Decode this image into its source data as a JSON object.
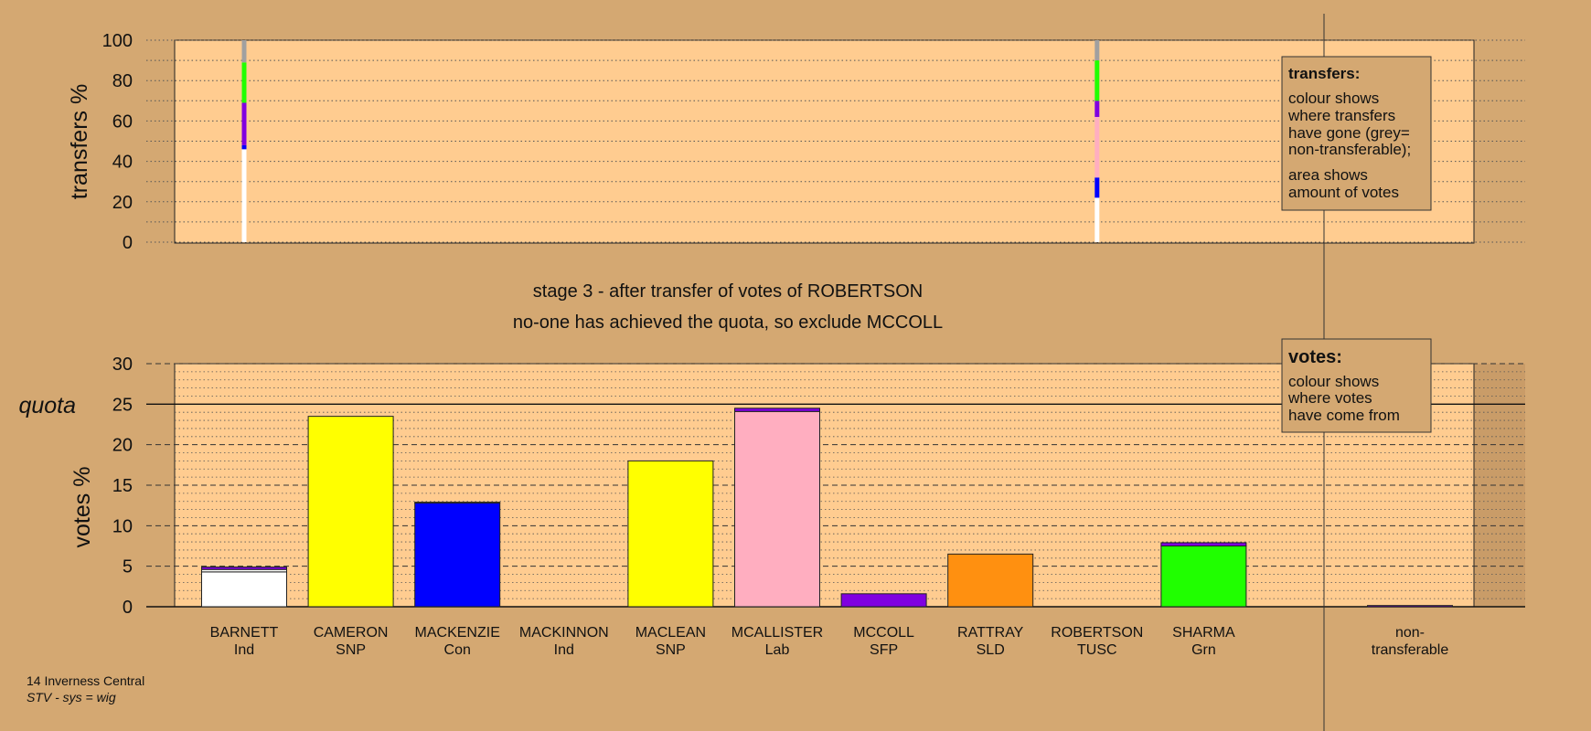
{
  "stage_line1": "stage 3 - after transfer of votes of ROBERTSON",
  "stage_line2": "no-one has achieved the quota, so exclude MCCOLL",
  "footer": {
    "line1": "14 Inverness Central",
    "line2": "STV - sys = wig"
  },
  "legend_transfers": {
    "title": "transfers:",
    "lines": [
      "colour shows",
      "where transfers",
      "have gone (grey=",
      "non-transferable);",
      "area shows",
      "amount of votes"
    ]
  },
  "legend_votes": {
    "title": "votes:",
    "lines": [
      "colour shows",
      "where votes",
      "have come from"
    ]
  },
  "colors": {
    "background": "#d4a872",
    "plot": "#ffcc90",
    "Ind": "#ffffff",
    "SNP": "#ffff00",
    "Con": "#0000ff",
    "Lab": "#ffaec0",
    "SFP": "#8000e0",
    "SLD": "#ff9010",
    "TUSC": "#d4a872",
    "Grn": "#20ff00",
    "nontransferable": "#a0a0a0"
  },
  "chart_data": [
    {
      "type": "bar",
      "subtype": "stacked",
      "ylabel": "transfers %",
      "ylim": [
        0,
        100
      ],
      "yticks": [
        0,
        20,
        40,
        60,
        80,
        100
      ],
      "grid": "dotted",
      "columns": [
        {
          "candidate": "BARNETT",
          "segments": [
            {
              "source": "Ind",
              "from": 0,
              "to": 46
            },
            {
              "source": "Con",
              "from": 46,
              "to": 48
            },
            {
              "source": "SFP",
              "from": 48,
              "to": 69
            },
            {
              "source": "Grn",
              "from": 69,
              "to": 89
            },
            {
              "source": "nontransferable",
              "from": 89,
              "to": 100
            }
          ]
        },
        {
          "candidate": "ROBERTSON",
          "segments": [
            {
              "source": "Ind",
              "from": 0,
              "to": 22
            },
            {
              "source": "Con",
              "from": 22,
              "to": 32
            },
            {
              "source": "Lab",
              "from": 32,
              "to": 62
            },
            {
              "source": "SFP",
              "from": 62,
              "to": 70
            },
            {
              "source": "Grn",
              "from": 70,
              "to": 90
            },
            {
              "source": "nontransferable",
              "from": 90,
              "to": 100
            }
          ]
        }
      ]
    },
    {
      "type": "bar",
      "subtype": "stacked",
      "ylabel": "votes %",
      "ylim": [
        0,
        30
      ],
      "yticks": [
        0,
        5,
        10,
        15,
        20,
        25,
        30
      ],
      "quota": 25,
      "quota_label": "quota",
      "grid": "dashed",
      "categories": [
        {
          "name": "BARNETT",
          "party": "Ind"
        },
        {
          "name": "CAMERON",
          "party": "SNP"
        },
        {
          "name": "MACKENZIE",
          "party": "Con"
        },
        {
          "name": "MACKINNON",
          "party": "Ind"
        },
        {
          "name": "MACLEAN",
          "party": "SNP"
        },
        {
          "name": "MCALLISTER",
          "party": "Lab"
        },
        {
          "name": "MCCOLL",
          "party": "SFP"
        },
        {
          "name": "RATTRAY",
          "party": "SLD"
        },
        {
          "name": "ROBERTSON",
          "party": "TUSC"
        },
        {
          "name": "SHARMA",
          "party": "Grn"
        },
        {
          "name": "non-",
          "party": "transferable"
        }
      ],
      "bars": [
        {
          "segments": [
            {
              "source": "Ind",
              "value": 4.3
            },
            {
              "source": "Ind",
              "value": 0.3
            },
            {
              "source": "SFP",
              "value": 0.3
            }
          ]
        },
        {
          "segments": [
            {
              "source": "SNP",
              "value": 23.5
            }
          ]
        },
        {
          "segments": [
            {
              "source": "Con",
              "value": 12.8
            },
            {
              "source": "Con",
              "value": 0.1
            }
          ]
        },
        {
          "segments": [
            {
              "source": "Ind",
              "value": 0
            }
          ]
        },
        {
          "segments": [
            {
              "source": "SNP",
              "value": 18.0
            }
          ]
        },
        {
          "segments": [
            {
              "source": "Lab",
              "value": 24.1
            },
            {
              "source": "SFP",
              "value": 0.4
            }
          ]
        },
        {
          "segments": [
            {
              "source": "SFP",
              "value": 1.6
            }
          ]
        },
        {
          "segments": [
            {
              "source": "SLD",
              "value": 6.5
            }
          ]
        },
        {
          "segments": [
            {
              "source": "TUSC",
              "value": 0
            }
          ]
        },
        {
          "segments": [
            {
              "source": "Grn",
              "value": 7.5
            },
            {
              "source": "SFP",
              "value": 0.4
            }
          ]
        },
        {
          "segments": [
            {
              "source": "SFP",
              "value": 0.15
            }
          ]
        }
      ]
    }
  ]
}
